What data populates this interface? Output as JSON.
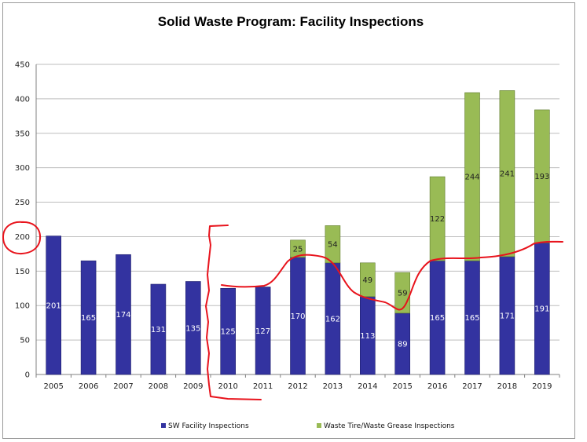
{
  "chart_data": {
    "type": "bar",
    "stacked": true,
    "title": "Solid Waste Program:  Facility Inspections",
    "xlabel": "",
    "ylabel": "",
    "ylim": [
      0,
      450
    ],
    "yticks": [
      0,
      50,
      100,
      150,
      200,
      250,
      300,
      350,
      400,
      450
    ],
    "grid": true,
    "legend_position": "bottom",
    "categories": [
      "2005",
      "2006",
      "2007",
      "2008",
      "2009",
      "2010",
      "2011",
      "2012",
      "2013",
      "2014",
      "2015",
      "2016",
      "2017",
      "2018",
      "2019"
    ],
    "series": [
      {
        "name": "SW Facility Inspections",
        "color": "#3333a0",
        "values": [
          201,
          165,
          174,
          131,
          135,
          125,
          127,
          170,
          162,
          113,
          89,
          165,
          165,
          171,
          191
        ]
      },
      {
        "name": "Waste Tire/Waste Grease Inspections",
        "color": "#99bb55",
        "values": [
          0,
          0,
          0,
          0,
          0,
          0,
          0,
          25,
          54,
          49,
          59,
          122,
          244,
          241,
          193
        ]
      }
    ],
    "annotation_color": "#e8131c"
  }
}
